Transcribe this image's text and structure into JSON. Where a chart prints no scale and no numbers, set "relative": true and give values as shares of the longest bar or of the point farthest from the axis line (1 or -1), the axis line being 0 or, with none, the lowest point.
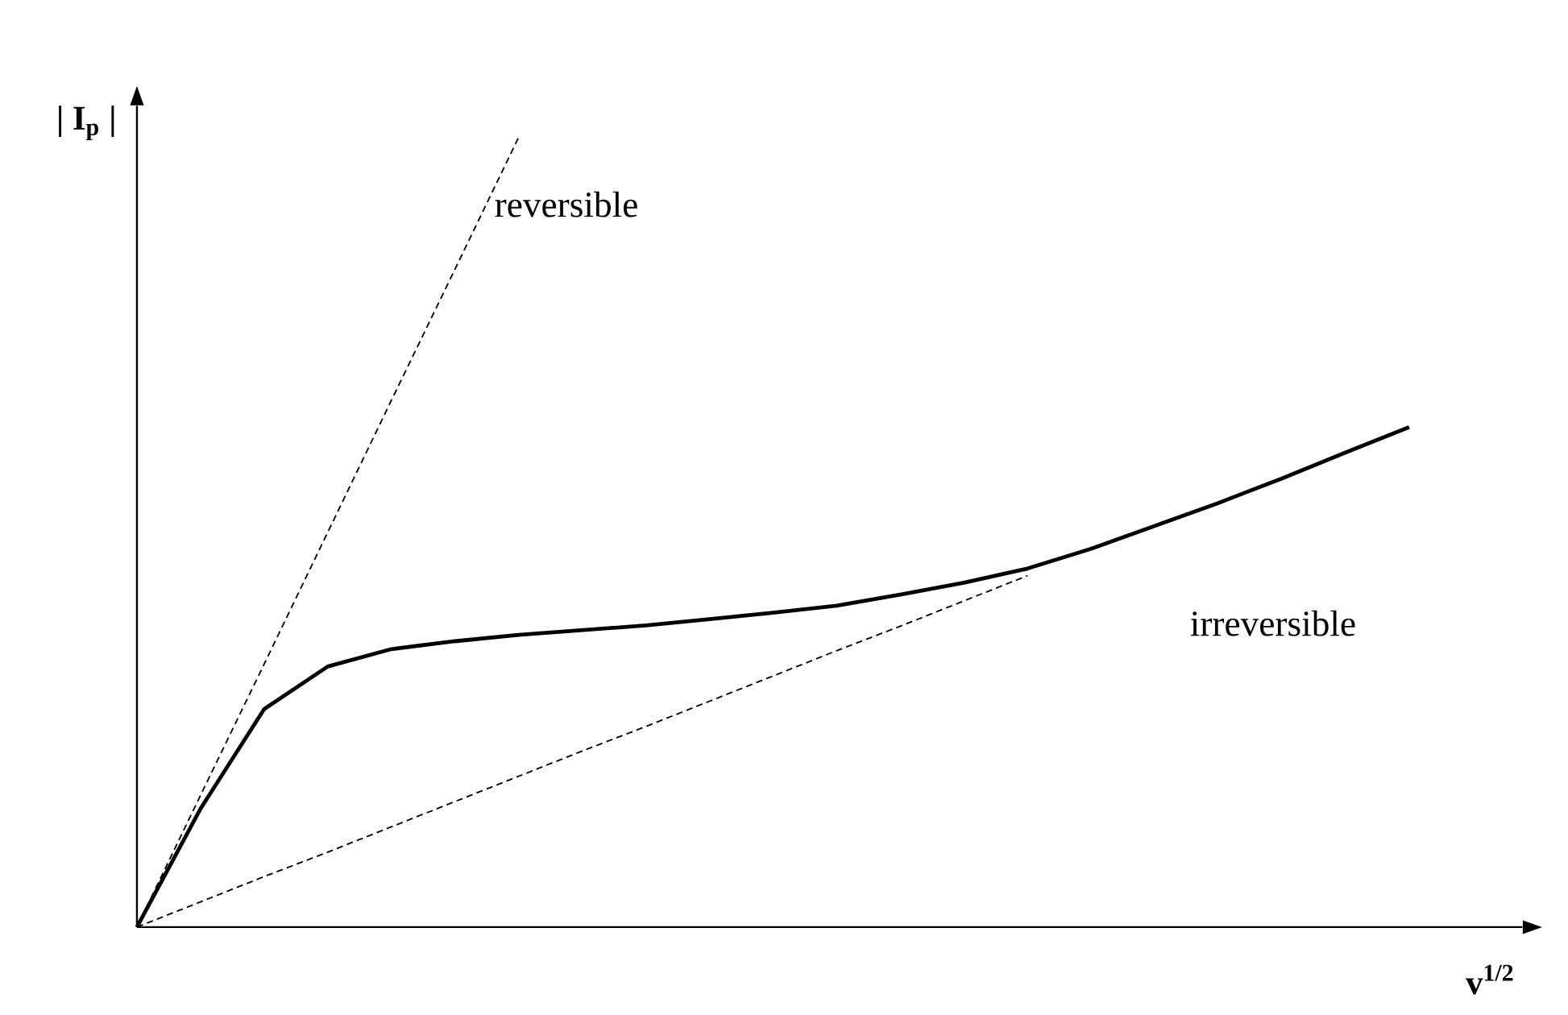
{
  "chart_data": {
    "type": "line",
    "relative": true,
    "xlabel": "v$^{1/2}$",
    "ylabel": "| I$_{p}$ |",
    "marker": "none",
    "categories": [
      null,
      null,
      null,
      null,
      null,
      null,
      null,
      null,
      null,
      null,
      null,
      null,
      null,
      null,
      null,
      null,
      null,
      null,
      null,
      null,
      null
    ],
    "series": [
      {
        "color": "#000000",
        "line_style": "solid",
        "values": [
          0,
          0.15,
          0.276,
          0.33,
          0.352,
          0.362,
          0.37,
          0.376,
          0.382,
          0.39,
          0.398,
          0.407,
          0.421,
          0.436,
          0.454,
          0.479,
          0.508,
          0.537,
          0.568,
          0.601,
          0.633
        ]
      },
      {
        "color": "#000000",
        "line_style": "dashed",
        "values": [
          0,
          0.167,
          0.333,
          0.5,
          0.667,
          0.833,
          1,
          null,
          null,
          null,
          null,
          null,
          null,
          null,
          null,
          null,
          null,
          null,
          null,
          null,
          null
        ]
      },
      {
        "color": "#000000",
        "line_style": "dashed",
        "values": [
          0,
          0.032,
          0.064,
          0.095,
          0.127,
          0.159,
          0.191,
          0.223,
          0.254,
          0.286,
          0.318,
          0.35,
          0.381,
          0.413,
          0.445,
          null,
          null,
          null,
          null,
          null,
          null
        ]
      }
    ],
    "annotations": [
      "reversible",
      "irreversible"
    ]
  }
}
